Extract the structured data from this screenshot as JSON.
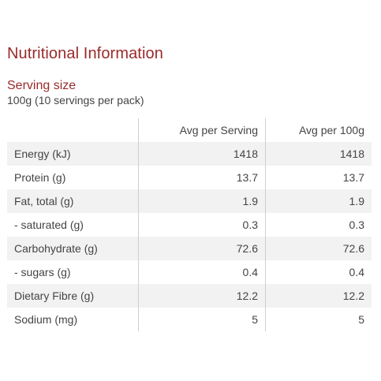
{
  "title": "Nutritional Information",
  "serving": {
    "label": "Serving size",
    "value": "100g (10 servings per pack)"
  },
  "table": {
    "headers": [
      "",
      "Avg per Serving",
      "Avg per 100g"
    ],
    "rows": [
      {
        "nutrient": "Energy (kJ)",
        "per_serving": "1418",
        "per_100g": "1418"
      },
      {
        "nutrient": "Protein (g)",
        "per_serving": "13.7",
        "per_100g": "13.7"
      },
      {
        "nutrient": "Fat, total (g)",
        "per_serving": "1.9",
        "per_100g": "1.9"
      },
      {
        "nutrient": "- saturated (g)",
        "per_serving": "0.3",
        "per_100g": "0.3"
      },
      {
        "nutrient": "Carbohydrate (g)",
        "per_serving": "72.6",
        "per_100g": "72.6"
      },
      {
        "nutrient": "- sugars (g)",
        "per_serving": "0.4",
        "per_100g": "0.4"
      },
      {
        "nutrient": "Dietary Fibre (g)",
        "per_serving": "12.2",
        "per_100g": "12.2"
      },
      {
        "nutrient": "Sodium (mg)",
        "per_serving": "5",
        "per_100g": "5"
      }
    ]
  },
  "colors": {
    "heading": "#9a2a2a",
    "text": "#444444",
    "row_stripe": "#f2f2f2",
    "divider": "#cfcfcf"
  }
}
